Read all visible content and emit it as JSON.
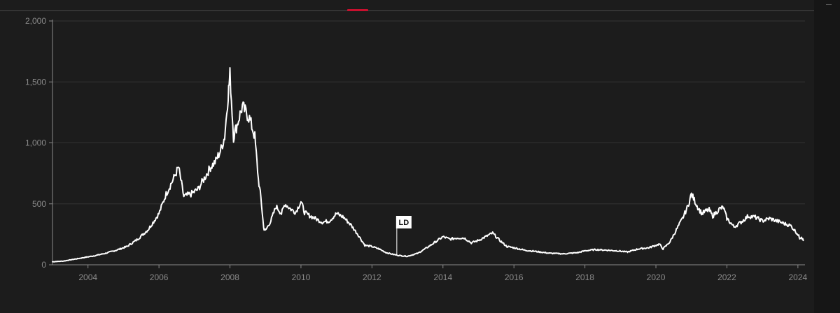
{
  "colors": {
    "background": "#1c1c1c",
    "gridline": "#333333",
    "axis": "#8a8a8a",
    "line": "#ffffff",
    "accent": "#c8102e"
  },
  "chart_data": {
    "type": "line",
    "title": "",
    "xlabel": "",
    "ylabel": "",
    "xlim": [
      2003.0,
      2024.2
    ],
    "ylim": [
      0,
      2000
    ],
    "grid": true,
    "y_ticks": [
      0,
      500,
      1000,
      1500,
      2000
    ],
    "y_tick_labels": [
      "0",
      "500",
      "1,000",
      "1,500",
      "2,000"
    ],
    "x_ticks": [
      2004,
      2006,
      2008,
      2010,
      2012,
      2014,
      2016,
      2018,
      2020,
      2022,
      2024
    ],
    "x_tick_labels": [
      "2004",
      "2006",
      "2008",
      "2010",
      "2012",
      "2014",
      "2016",
      "2018",
      "2020",
      "2022",
      "2024"
    ],
    "annotations": [
      {
        "label": "LD",
        "x": 2012.7,
        "y": 85
      }
    ],
    "series": [
      {
        "x": [
          2003.0,
          2003.3,
          2003.6,
          2003.9,
          2004.2,
          2004.5,
          2004.8,
          2005.1,
          2005.4,
          2005.7,
          2006.0,
          2006.2,
          2006.4,
          2006.55,
          2006.7,
          2006.9,
          2007.1,
          2007.3,
          2007.45,
          2007.6,
          2007.75,
          2007.85,
          2007.95,
          2008.0,
          2008.1,
          2008.2,
          2008.35,
          2008.45,
          2008.55,
          2008.7,
          2008.8,
          2008.87,
          2008.95,
          2009.0,
          2009.15,
          2009.3,
          2009.45,
          2009.55,
          2009.7,
          2009.85,
          2010.0,
          2010.1,
          2010.2,
          2010.4,
          2010.6,
          2010.8,
          2011.0,
          2011.2,
          2011.4,
          2011.6,
          2011.8,
          2012.0,
          2012.2,
          2012.4,
          2012.6,
          2012.8,
          2013.0,
          2013.3,
          2013.6,
          2013.8,
          2014.0,
          2014.2,
          2014.4,
          2014.6,
          2014.8,
          2015.0,
          2015.2,
          2015.4,
          2015.6,
          2015.8,
          2016.0,
          2016.3,
          2016.6,
          2017.0,
          2017.4,
          2017.8,
          2018.0,
          2018.3,
          2018.6,
          2018.9,
          2019.2,
          2019.5,
          2019.8,
          2020.0,
          2020.1,
          2020.2,
          2020.4,
          2020.6,
          2020.75,
          2020.9,
          2021.0,
          2021.1,
          2021.2,
          2021.3,
          2021.4,
          2021.5,
          2021.6,
          2021.8,
          2021.9,
          2022.0,
          2022.2,
          2022.4,
          2022.6,
          2022.8,
          2023.0,
          2023.2,
          2023.4,
          2023.6,
          2023.8,
          2024.0,
          2024.05,
          2024.1,
          2024.15
        ],
        "values": [
          25,
          30,
          45,
          60,
          75,
          95,
          120,
          150,
          210,
          290,
          420,
          580,
          700,
          800,
          560,
          580,
          620,
          720,
          800,
          850,
          950,
          1050,
          1400,
          1560,
          1050,
          1150,
          1300,
          1250,
          1200,
          1050,
          700,
          550,
          300,
          280,
          360,
          480,
          420,
          500,
          460,
          430,
          520,
          430,
          410,
          380,
          350,
          360,
          420,
          390,
          330,
          250,
          160,
          150,
          130,
          100,
          85,
          75,
          70,
          95,
          150,
          190,
          230,
          210,
          220,
          220,
          180,
          200,
          230,
          260,
          200,
          150,
          140,
          120,
          110,
          95,
          90,
          100,
          115,
          125,
          120,
          115,
          105,
          130,
          140,
          160,
          170,
          130,
          190,
          300,
          380,
          480,
          580,
          520,
          460,
          420,
          440,
          450,
          400,
          460,
          470,
          380,
          310,
          350,
          400,
          390,
          360,
          380,
          360,
          340,
          320,
          250,
          220,
          230,
          200
        ]
      }
    ]
  }
}
